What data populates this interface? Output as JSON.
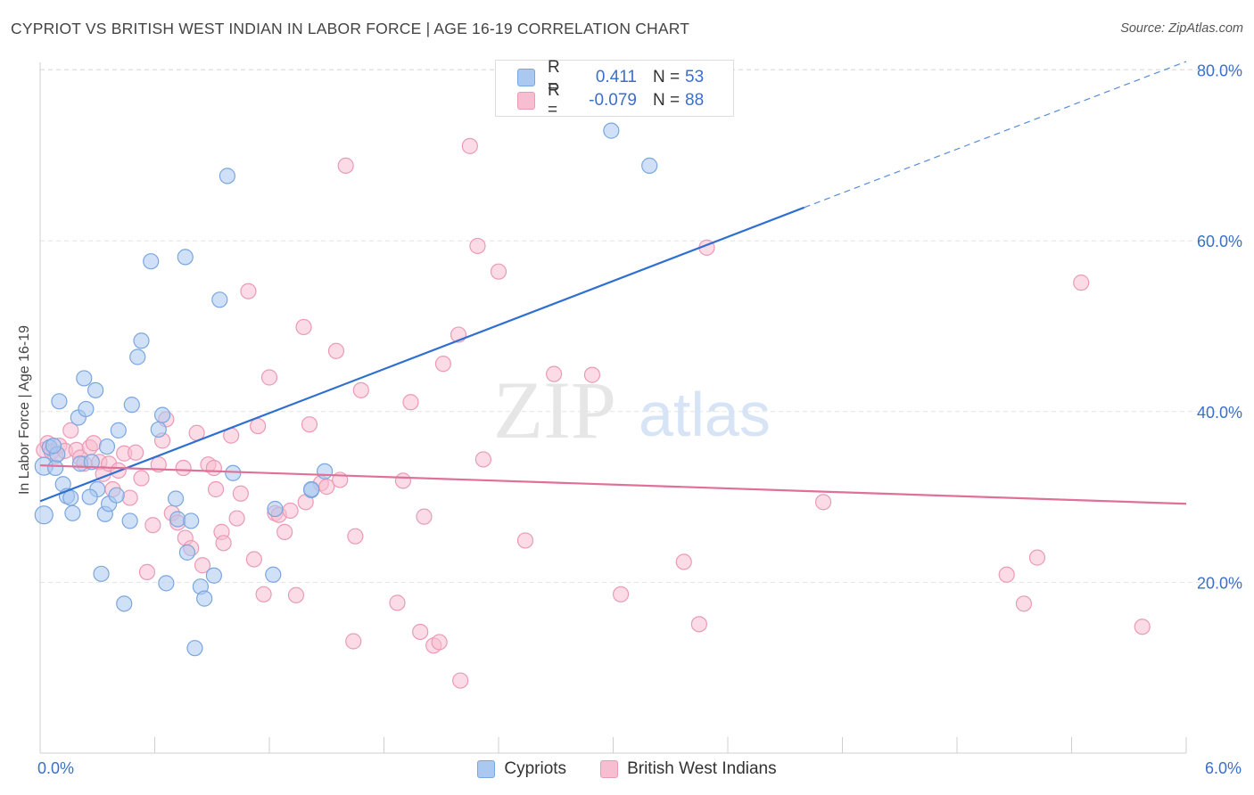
{
  "title": "CYPRIOT VS BRITISH WEST INDIAN IN LABOR FORCE | AGE 16-19 CORRELATION CHART",
  "source": "Source: ZipAtlas.com",
  "watermark": {
    "zip": "ZIP",
    "atlas": "atlas"
  },
  "legend": {
    "rows": [
      {
        "r_label": "R =",
        "r_value": "0.411",
        "n_label": "N =",
        "n_value": "53"
      },
      {
        "r_label": "R =",
        "r_value": "-0.079",
        "n_label": "N =",
        "n_value": "88"
      }
    ]
  },
  "bottom_legend": [
    "Cypriots",
    "British West Indians"
  ],
  "x_axis": {
    "min_label": "0.0%",
    "max_label": "6.0%"
  },
  "colors": {
    "cypriots_fill": "#aac8f0",
    "cypriots_stroke": "#7aa6e0",
    "cypriots_line": "#2f6fd0",
    "bwi_fill": "#f7bdd0",
    "bwi_stroke": "#eb9ab6",
    "bwi_line": "#e07098",
    "axis_text": "#3b6fc9",
    "grid": "#e3e3e3"
  },
  "chart_data": {
    "type": "scatter",
    "title": "CYPRIOT VS BRITISH WEST INDIAN IN LABOR FORCE | AGE 16-19 CORRELATION CHART",
    "xlabel": "",
    "ylabel": "In Labor Force | Age 16-19",
    "xlim": [
      0,
      6
    ],
    "ylim": [
      0,
      82
    ],
    "y_ticks": [
      20,
      40,
      60,
      80
    ],
    "y_tick_labels": [
      "20.0%",
      "40.0%",
      "60.0%",
      "80.0%"
    ],
    "grid": true,
    "legend_placement": "top-center",
    "series": [
      {
        "name": "Cypriots",
        "r": 0.411,
        "n": 53,
        "trend": {
          "x": [
            0,
            4.0
          ],
          "y": [
            29.5,
            63.9
          ],
          "dashed_to": [
            6.0,
            81.0
          ]
        },
        "points": [
          [
            0.02,
            27.9
          ],
          [
            0.02,
            33.6
          ],
          [
            0.05,
            35.8
          ],
          [
            0.08,
            33.4
          ],
          [
            0.09,
            35.0
          ],
          [
            0.1,
            41.2
          ],
          [
            0.12,
            31.5
          ],
          [
            0.14,
            30.1
          ],
          [
            0.16,
            29.9
          ],
          [
            0.17,
            28.1
          ],
          [
            0.2,
            39.3
          ],
          [
            0.21,
            33.9
          ],
          [
            0.23,
            43.9
          ],
          [
            0.24,
            40.3
          ],
          [
            0.27,
            34.1
          ],
          [
            0.29,
            42.5
          ],
          [
            0.3,
            30.9
          ],
          [
            0.32,
            21.0
          ],
          [
            0.34,
            28.0
          ],
          [
            0.35,
            35.9
          ],
          [
            0.36,
            29.2
          ],
          [
            0.4,
            30.2
          ],
          [
            0.41,
            37.8
          ],
          [
            0.44,
            17.5
          ],
          [
            0.47,
            27.2
          ],
          [
            0.48,
            40.8
          ],
          [
            0.51,
            46.4
          ],
          [
            0.53,
            48.3
          ],
          [
            0.58,
            57.6
          ],
          [
            0.62,
            37.9
          ],
          [
            0.64,
            39.6
          ],
          [
            0.66,
            19.9
          ],
          [
            0.71,
            29.8
          ],
          [
            0.72,
            27.4
          ],
          [
            0.76,
            58.1
          ],
          [
            0.77,
            23.5
          ],
          [
            0.79,
            27.2
          ],
          [
            0.81,
            12.3
          ],
          [
            0.84,
            19.5
          ],
          [
            0.86,
            18.1
          ],
          [
            0.91,
            20.8
          ],
          [
            0.94,
            53.1
          ],
          [
            0.98,
            67.6
          ],
          [
            1.01,
            32.8
          ],
          [
            1.22,
            20.9
          ],
          [
            1.23,
            28.6
          ],
          [
            1.42,
            30.8
          ],
          [
            1.49,
            33.0
          ],
          [
            2.99,
            72.9
          ],
          [
            3.19,
            68.8
          ],
          [
            1.42,
            30.9
          ],
          [
            0.07,
            36.0
          ],
          [
            0.26,
            30.0
          ]
        ]
      },
      {
        "name": "British West Indians",
        "r": -0.079,
        "n": 88,
        "trend": {
          "x": [
            0,
            6.0
          ],
          "y": [
            33.7,
            29.2
          ]
        },
        "points": [
          [
            0.02,
            35.5
          ],
          [
            0.04,
            36.3
          ],
          [
            0.06,
            35.3
          ],
          [
            0.08,
            34.8
          ],
          [
            0.1,
            36.0
          ],
          [
            0.13,
            35.4
          ],
          [
            0.16,
            37.8
          ],
          [
            0.19,
            35.5
          ],
          [
            0.21,
            34.6
          ],
          [
            0.23,
            33.9
          ],
          [
            0.26,
            35.8
          ],
          [
            0.28,
            36.3
          ],
          [
            0.31,
            34.1
          ],
          [
            0.33,
            32.7
          ],
          [
            0.36,
            33.9
          ],
          [
            0.38,
            30.9
          ],
          [
            0.41,
            33.1
          ],
          [
            0.44,
            35.1
          ],
          [
            0.47,
            29.9
          ],
          [
            0.5,
            35.2
          ],
          [
            0.53,
            32.2
          ],
          [
            0.56,
            21.2
          ],
          [
            0.59,
            26.7
          ],
          [
            0.62,
            33.8
          ],
          [
            0.64,
            36.6
          ],
          [
            0.66,
            39.1
          ],
          [
            0.69,
            28.1
          ],
          [
            0.72,
            27.0
          ],
          [
            0.75,
            33.4
          ],
          [
            0.76,
            25.2
          ],
          [
            0.79,
            24.0
          ],
          [
            0.82,
            37.5
          ],
          [
            0.85,
            22.0
          ],
          [
            0.88,
            33.8
          ],
          [
            0.91,
            33.4
          ],
          [
            0.92,
            30.9
          ],
          [
            0.95,
            25.9
          ],
          [
            0.96,
            24.6
          ],
          [
            1.0,
            37.2
          ],
          [
            1.03,
            27.5
          ],
          [
            1.05,
            30.4
          ],
          [
            1.09,
            54.1
          ],
          [
            1.12,
            22.7
          ],
          [
            1.14,
            38.3
          ],
          [
            1.17,
            18.6
          ],
          [
            1.2,
            44.0
          ],
          [
            1.23,
            28.1
          ],
          [
            1.25,
            27.9
          ],
          [
            1.28,
            25.9
          ],
          [
            1.31,
            28.4
          ],
          [
            1.34,
            18.5
          ],
          [
            1.38,
            49.9
          ],
          [
            1.39,
            29.4
          ],
          [
            1.41,
            38.5
          ],
          [
            1.47,
            31.6
          ],
          [
            1.5,
            31.2
          ],
          [
            1.55,
            47.1
          ],
          [
            1.57,
            32.0
          ],
          [
            1.6,
            68.8
          ],
          [
            1.64,
            13.1
          ],
          [
            1.65,
            25.4
          ],
          [
            1.68,
            42.5
          ],
          [
            1.87,
            17.6
          ],
          [
            1.9,
            31.9
          ],
          [
            1.94,
            41.1
          ],
          [
            1.99,
            14.2
          ],
          [
            2.01,
            27.7
          ],
          [
            2.06,
            12.6
          ],
          [
            2.09,
            13.0
          ],
          [
            2.11,
            45.6
          ],
          [
            2.19,
            49.0
          ],
          [
            2.2,
            8.5
          ],
          [
            2.25,
            71.1
          ],
          [
            2.29,
            59.4
          ],
          [
            2.32,
            34.4
          ],
          [
            2.4,
            56.4
          ],
          [
            2.54,
            24.9
          ],
          [
            2.69,
            44.4
          ],
          [
            2.89,
            44.3
          ],
          [
            3.04,
            18.6
          ],
          [
            3.37,
            22.4
          ],
          [
            3.45,
            15.1
          ],
          [
            3.49,
            59.2
          ],
          [
            4.1,
            29.4
          ],
          [
            5.06,
            20.9
          ],
          [
            5.15,
            17.5
          ],
          [
            5.22,
            22.9
          ],
          [
            5.45,
            55.1
          ],
          [
            5.77,
            14.8
          ]
        ]
      }
    ]
  }
}
